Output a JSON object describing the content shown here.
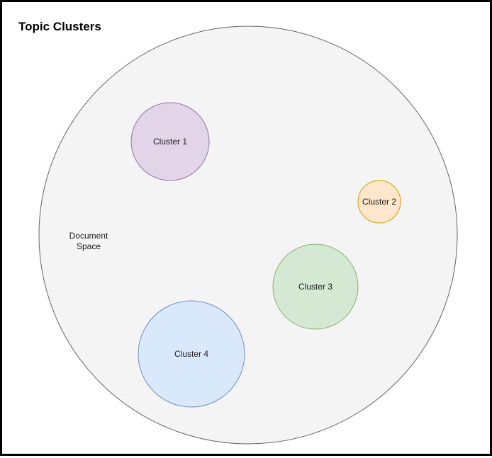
{
  "title": "Topic Clusters",
  "document_space": {
    "label_lines": [
      "Document",
      "Space"
    ],
    "fill": "#f4f4f4",
    "stroke": "#666666"
  },
  "clusters": [
    {
      "label": "Cluster 1",
      "fill": "#e1d5e7",
      "stroke": "#9673a6"
    },
    {
      "label": "Cluster 2",
      "fill": "#ffe6cc",
      "stroke": "#d79b00"
    },
    {
      "label": "Cluster 3",
      "fill": "#d5e8d4",
      "stroke": "#82b366"
    },
    {
      "label": "Cluster 4",
      "fill": "#dae8fc",
      "stroke": "#6c8ebf"
    }
  ]
}
